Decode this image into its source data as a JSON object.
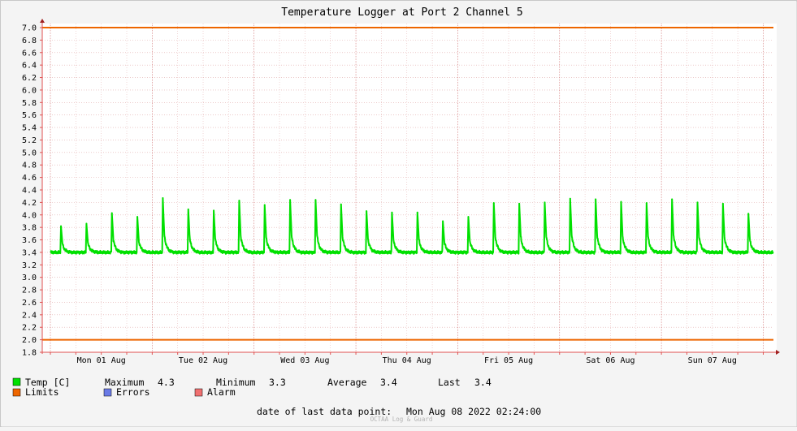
{
  "chart_data": {
    "type": "line",
    "title": "Temperature Logger at Port 2 Channel 5",
    "xlabel": "",
    "ylabel": "",
    "ylim": [
      1.8,
      7.0
    ],
    "yticks": [
      1.8,
      2.0,
      2.2,
      2.4,
      2.6,
      2.8,
      3.0,
      3.2,
      3.4,
      3.6,
      3.8,
      4.0,
      4.2,
      4.4,
      4.6,
      4.8,
      5.0,
      5.2,
      5.4,
      5.6,
      5.8,
      6.0,
      6.2,
      6.4,
      6.6,
      6.8,
      7.0
    ],
    "x_start": "Mon Aug 01 2022 00:00",
    "x_end": "Mon Aug 08 2022 02:24",
    "day_labels": [
      "Mon 01 Aug",
      "Tue 02 Aug",
      "Wed 03 Aug",
      "Thu 04 Aug",
      "Fri 05 Aug",
      "Sat 06 Aug",
      "Sun 07 Aug"
    ],
    "grid": true,
    "series": [
      {
        "name": "Temp [C]",
        "color": "#00e000",
        "baseline": 3.4,
        "spikes": [
          {
            "t": "Mon 01 Aug 02:30",
            "value": 3.82
          },
          {
            "t": "Mon 01 Aug 08:30",
            "value": 3.86
          },
          {
            "t": "Mon 01 Aug 14:30",
            "value": 4.03
          },
          {
            "t": "Mon 01 Aug 20:30",
            "value": 3.97
          },
          {
            "t": "Tue 02 Aug 02:30",
            "value": 4.27
          },
          {
            "t": "Tue 02 Aug 08:30",
            "value": 4.09
          },
          {
            "t": "Tue 02 Aug 14:30",
            "value": 4.07
          },
          {
            "t": "Tue 02 Aug 20:30",
            "value": 4.23
          },
          {
            "t": "Wed 03 Aug 02:30",
            "value": 4.16
          },
          {
            "t": "Wed 03 Aug 08:30",
            "value": 4.24
          },
          {
            "t": "Wed 03 Aug 14:30",
            "value": 4.24
          },
          {
            "t": "Wed 03 Aug 20:30",
            "value": 4.17
          },
          {
            "t": "Thu 04 Aug 02:30",
            "value": 4.06
          },
          {
            "t": "Thu 04 Aug 08:30",
            "value": 4.04
          },
          {
            "t": "Thu 04 Aug 14:30",
            "value": 4.04
          },
          {
            "t": "Thu 04 Aug 20:30",
            "value": 3.9
          },
          {
            "t": "Fri 05 Aug 02:30",
            "value": 3.97
          },
          {
            "t": "Fri 05 Aug 08:30",
            "value": 4.19
          },
          {
            "t": "Fri 05 Aug 14:30",
            "value": 4.18
          },
          {
            "t": "Fri 05 Aug 20:30",
            "value": 4.2
          },
          {
            "t": "Sat 06 Aug 02:30",
            "value": 4.26
          },
          {
            "t": "Sat 06 Aug 08:30",
            "value": 4.25
          },
          {
            "t": "Sat 06 Aug 14:30",
            "value": 4.21
          },
          {
            "t": "Sat 06 Aug 20:30",
            "value": 4.19
          },
          {
            "t": "Sun 07 Aug 02:30",
            "value": 4.25
          },
          {
            "t": "Sun 07 Aug 08:30",
            "value": 4.2
          },
          {
            "t": "Sun 07 Aug 14:30",
            "value": 4.18
          },
          {
            "t": "Sun 07 Aug 20:30",
            "value": 4.02
          }
        ]
      },
      {
        "name": "Limits",
        "color": "#ee6600",
        "values": [
          2.0,
          7.0
        ]
      },
      {
        "name": "Errors",
        "color": "#6a7ae6"
      },
      {
        "name": "Alarm",
        "color": "#f07070"
      }
    ],
    "stats": {
      "maximum_label": "Maximum",
      "maximum": "4.3",
      "minimum_label": "Minimum",
      "minimum": "3.3",
      "average_label": "Average",
      "average": "3.4",
      "last_label": "Last",
      "last": "3.4"
    },
    "footer": {
      "label": "date of last data point:",
      "value": "Mon Aug 08 2022 02:24:00"
    },
    "credit": "OCTAA Log & Guard"
  }
}
